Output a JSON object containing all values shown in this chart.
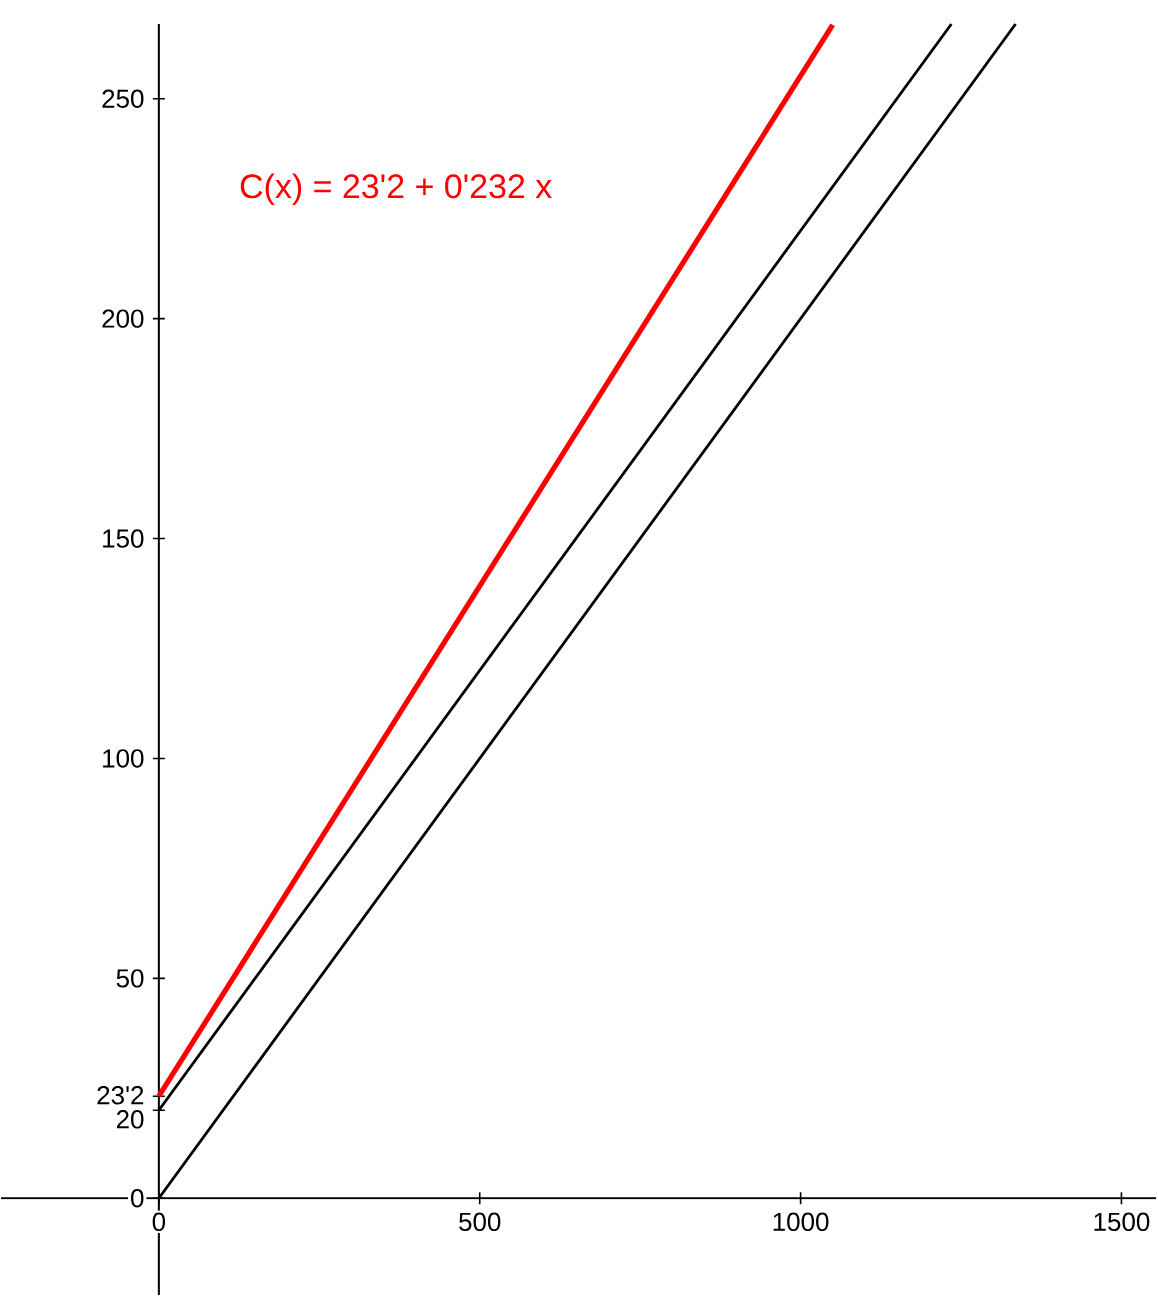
{
  "chart_data": {
    "type": "line",
    "xlim": [
      -246,
      1554
    ],
    "ylim": [
      -22,
      267
    ],
    "xticks": [
      0,
      500,
      1000,
      1500
    ],
    "yticks": [
      0,
      20,
      {
        "value": 23.2,
        "label": "23'2"
      },
      50,
      100,
      150,
      200,
      250
    ],
    "grid": false,
    "line_style": "solid",
    "series": [
      {
        "name": "C(x) = 23'2 + 0'232 x",
        "color": "#ff0000",
        "x": [
          0,
          1050
        ],
        "values": [
          23.2,
          266.8
        ]
      },
      {
        "color": "#000000",
        "x": [
          0,
          1235
        ],
        "values": [
          20,
          267
        ]
      },
      {
        "color": "#000000",
        "x": [
          0,
          1335
        ],
        "values": [
          0,
          267
        ]
      }
    ]
  }
}
